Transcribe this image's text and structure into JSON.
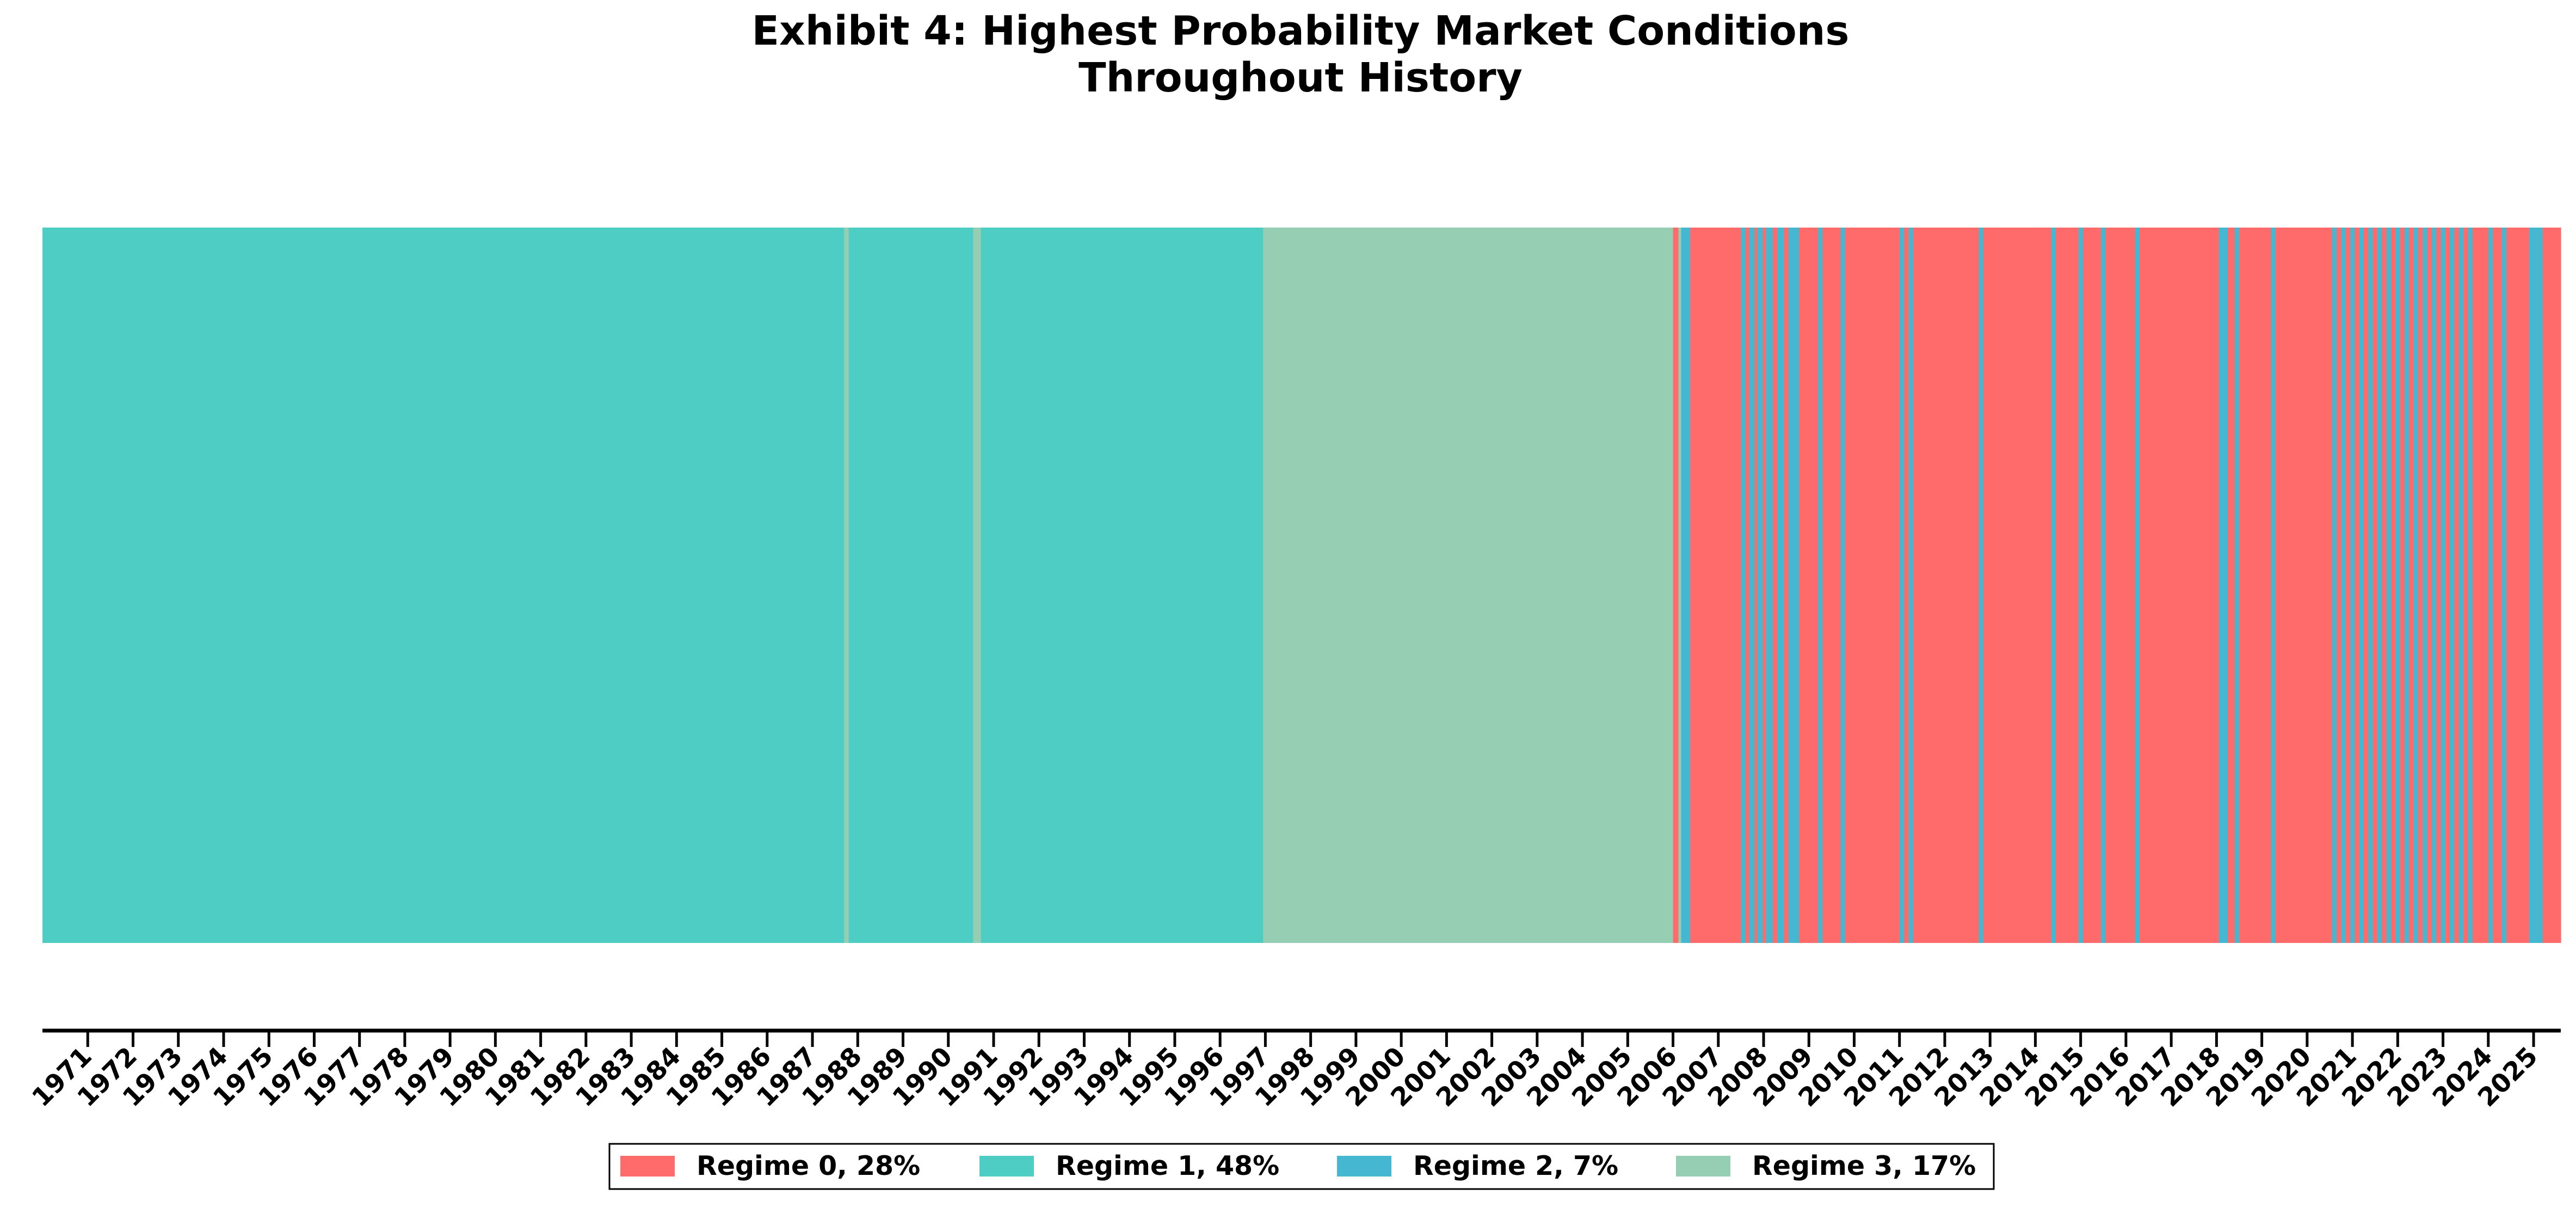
{
  "chart_data": {
    "type": "area",
    "title": [
      "Exhibit 4: Highest Probability Market Conditions",
      "Throughout History"
    ],
    "xlabel": "",
    "ylabel": "",
    "grid": false,
    "legend_placement": "bottom-center",
    "x_range": [
      1970.0,
      2025.6
    ],
    "x_ticks": [
      "1971",
      "1972",
      "1973",
      "1974",
      "1975",
      "1976",
      "1977",
      "1978",
      "1979",
      "1980",
      "1981",
      "1982",
      "1983",
      "1984",
      "1985",
      "1986",
      "1987",
      "1988",
      "1989",
      "1990",
      "1991",
      "1992",
      "1993",
      "1994",
      "1995",
      "1996",
      "1997",
      "1998",
      "1999",
      "2000",
      "2001",
      "2002",
      "2003",
      "2004",
      "2005",
      "2006",
      "2007",
      "2008",
      "2009",
      "2010",
      "2011",
      "2012",
      "2013",
      "2014",
      "2015",
      "2016",
      "2017",
      "2018",
      "2019",
      "2020",
      "2021",
      "2022",
      "2023",
      "2024",
      "2025"
    ],
    "regimes": [
      {
        "id": 0,
        "label": "Regime 0, 28%",
        "color": "#FF6B6B"
      },
      {
        "id": 1,
        "label": "Regime 1, 48%",
        "color": "#4ECDC4"
      },
      {
        "id": 2,
        "label": "Regime 2, 7%",
        "color": "#45B7D1"
      },
      {
        "id": 3,
        "label": "Regime 3, 17%",
        "color": "#96CEB4"
      }
    ],
    "segments": [
      {
        "start": 1970.0,
        "end": 1987.7,
        "regime": 1
      },
      {
        "start": 1987.7,
        "end": 1987.8,
        "regime": 3
      },
      {
        "start": 1987.8,
        "end": 1990.55,
        "regime": 1
      },
      {
        "start": 1990.55,
        "end": 1990.72,
        "regime": 3
      },
      {
        "start": 1990.72,
        "end": 1996.95,
        "regime": 1
      },
      {
        "start": 1996.95,
        "end": 2006.0,
        "regime": 3
      },
      {
        "start": 2006.0,
        "end": 2006.12,
        "regime": 0
      },
      {
        "start": 2006.12,
        "end": 2006.18,
        "regime": 3
      },
      {
        "start": 2006.18,
        "end": 2006.38,
        "regime": 2
      },
      {
        "start": 2006.38,
        "end": 2007.5,
        "regime": 0
      },
      {
        "start": 2007.5,
        "end": 2007.6,
        "regime": 2
      },
      {
        "start": 2007.6,
        "end": 2007.68,
        "regime": 0
      },
      {
        "start": 2007.68,
        "end": 2007.8,
        "regime": 2
      },
      {
        "start": 2007.8,
        "end": 2007.86,
        "regime": 0
      },
      {
        "start": 2007.86,
        "end": 2007.98,
        "regime": 2
      },
      {
        "start": 2007.98,
        "end": 2008.05,
        "regime": 0
      },
      {
        "start": 2008.05,
        "end": 2008.2,
        "regime": 2
      },
      {
        "start": 2008.2,
        "end": 2008.3,
        "regime": 0
      },
      {
        "start": 2008.3,
        "end": 2008.45,
        "regime": 2
      },
      {
        "start": 2008.45,
        "end": 2008.55,
        "regime": 0
      },
      {
        "start": 2008.55,
        "end": 2008.78,
        "regime": 2
      },
      {
        "start": 2008.78,
        "end": 2009.2,
        "regime": 0
      },
      {
        "start": 2009.2,
        "end": 2009.3,
        "regime": 2
      },
      {
        "start": 2009.3,
        "end": 2009.7,
        "regime": 0
      },
      {
        "start": 2009.7,
        "end": 2009.8,
        "regime": 2
      },
      {
        "start": 2009.8,
        "end": 2011.0,
        "regime": 0
      },
      {
        "start": 2011.0,
        "end": 2011.1,
        "regime": 2
      },
      {
        "start": 2011.1,
        "end": 2011.2,
        "regime": 0
      },
      {
        "start": 2011.2,
        "end": 2011.3,
        "regime": 2
      },
      {
        "start": 2011.3,
        "end": 2012.75,
        "regime": 0
      },
      {
        "start": 2012.75,
        "end": 2012.85,
        "regime": 2
      },
      {
        "start": 2012.85,
        "end": 2014.35,
        "regime": 0
      },
      {
        "start": 2014.35,
        "end": 2014.45,
        "regime": 2
      },
      {
        "start": 2014.45,
        "end": 2014.95,
        "regime": 0
      },
      {
        "start": 2014.95,
        "end": 2015.05,
        "regime": 2
      },
      {
        "start": 2015.05,
        "end": 2015.45,
        "regime": 0
      },
      {
        "start": 2015.45,
        "end": 2015.55,
        "regime": 2
      },
      {
        "start": 2015.55,
        "end": 2016.2,
        "regime": 0
      },
      {
        "start": 2016.2,
        "end": 2016.3,
        "regime": 2
      },
      {
        "start": 2016.3,
        "end": 2018.05,
        "regime": 0
      },
      {
        "start": 2018.05,
        "end": 2018.25,
        "regime": 2
      },
      {
        "start": 2018.25,
        "end": 2018.4,
        "regime": 0
      },
      {
        "start": 2018.4,
        "end": 2018.5,
        "regime": 2
      },
      {
        "start": 2018.5,
        "end": 2019.2,
        "regime": 0
      },
      {
        "start": 2019.2,
        "end": 2019.3,
        "regime": 2
      },
      {
        "start": 2019.3,
        "end": 2020.55,
        "regime": 0
      },
      {
        "start": 2020.55,
        "end": 2020.65,
        "regime": 2
      },
      {
        "start": 2020.65,
        "end": 2020.75,
        "regime": 0
      },
      {
        "start": 2020.75,
        "end": 2020.85,
        "regime": 2
      },
      {
        "start": 2020.85,
        "end": 2020.95,
        "regime": 0
      },
      {
        "start": 2020.95,
        "end": 2021.05,
        "regime": 2
      },
      {
        "start": 2021.05,
        "end": 2021.15,
        "regime": 0
      },
      {
        "start": 2021.15,
        "end": 2021.25,
        "regime": 2
      },
      {
        "start": 2021.25,
        "end": 2021.35,
        "regime": 0
      },
      {
        "start": 2021.35,
        "end": 2021.45,
        "regime": 2
      },
      {
        "start": 2021.45,
        "end": 2021.55,
        "regime": 0
      },
      {
        "start": 2021.55,
        "end": 2021.65,
        "regime": 2
      },
      {
        "start": 2021.65,
        "end": 2021.75,
        "regime": 0
      },
      {
        "start": 2021.75,
        "end": 2021.85,
        "regime": 2
      },
      {
        "start": 2021.85,
        "end": 2021.95,
        "regime": 0
      },
      {
        "start": 2021.95,
        "end": 2022.05,
        "regime": 2
      },
      {
        "start": 2022.05,
        "end": 2022.15,
        "regime": 0
      },
      {
        "start": 2022.15,
        "end": 2022.25,
        "regime": 2
      },
      {
        "start": 2022.25,
        "end": 2022.35,
        "regime": 0
      },
      {
        "start": 2022.35,
        "end": 2022.45,
        "regime": 2
      },
      {
        "start": 2022.45,
        "end": 2022.55,
        "regime": 0
      },
      {
        "start": 2022.55,
        "end": 2022.65,
        "regime": 2
      },
      {
        "start": 2022.65,
        "end": 2022.75,
        "regime": 0
      },
      {
        "start": 2022.75,
        "end": 2022.85,
        "regime": 2
      },
      {
        "start": 2022.85,
        "end": 2022.95,
        "regime": 0
      },
      {
        "start": 2022.95,
        "end": 2023.05,
        "regime": 2
      },
      {
        "start": 2023.05,
        "end": 2023.15,
        "regime": 0
      },
      {
        "start": 2023.15,
        "end": 2023.25,
        "regime": 2
      },
      {
        "start": 2023.25,
        "end": 2023.35,
        "regime": 0
      },
      {
        "start": 2023.35,
        "end": 2023.45,
        "regime": 2
      },
      {
        "start": 2023.45,
        "end": 2023.55,
        "regime": 0
      },
      {
        "start": 2023.55,
        "end": 2023.65,
        "regime": 2
      },
      {
        "start": 2023.65,
        "end": 2024.0,
        "regime": 0
      },
      {
        "start": 2024.0,
        "end": 2024.1,
        "regime": 2
      },
      {
        "start": 2024.1,
        "end": 2024.3,
        "regime": 0
      },
      {
        "start": 2024.3,
        "end": 2024.4,
        "regime": 2
      },
      {
        "start": 2024.4,
        "end": 2024.9,
        "regime": 0
      },
      {
        "start": 2024.9,
        "end": 2025.2,
        "regime": 2
      },
      {
        "start": 2025.2,
        "end": 2025.6,
        "regime": 0
      }
    ]
  }
}
